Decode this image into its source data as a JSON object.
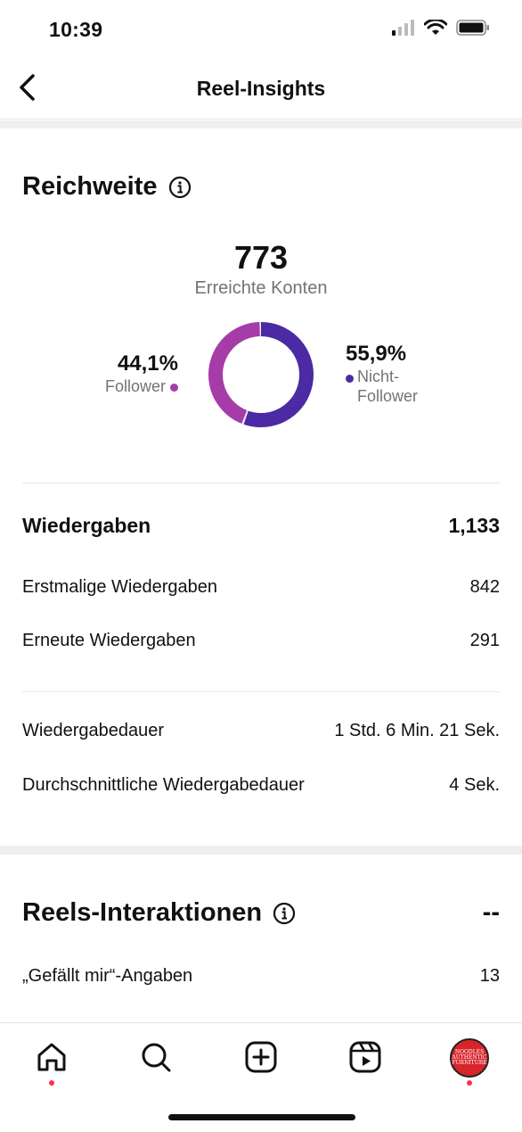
{
  "status_bar": {
    "time": "10:39"
  },
  "header": {
    "title": "Reel-Insights"
  },
  "reach": {
    "title": "Reichweite",
    "accounts_reached": "773",
    "accounts_reached_label": "Erreichte Konten",
    "followers": {
      "percent": "44,1%",
      "label": "Follower",
      "color": "#a63ca8",
      "fraction": 0.441
    },
    "non_followers": {
      "percent": "55,9%",
      "label_line1": "Nicht-",
      "label_line2": "Follower",
      "color": "#4b2aa3",
      "fraction": 0.559
    }
  },
  "plays": {
    "label": "Wiedergaben",
    "value": "1,133",
    "rows": [
      {
        "label": "Erstmalige Wiedergaben",
        "value": "842"
      },
      {
        "label": "Erneute Wiedergaben",
        "value": "291"
      }
    ]
  },
  "watch_time": {
    "rows": [
      {
        "label": "Wiedergabedauer",
        "value": "1 Std. 6 Min. 21 Sek."
      },
      {
        "label": "Durchschnittliche Wiedergabedauer",
        "value": "4 Sek."
      }
    ]
  },
  "interactions": {
    "title": "Reels-Interaktionen",
    "value": "--",
    "rows": [
      {
        "label": "„Gefällt mir“-Angaben",
        "value": "13"
      }
    ]
  },
  "tab_bar": {
    "items": [
      "home-icon",
      "search-icon",
      "create-icon",
      "reels-icon",
      "profile-avatar"
    ],
    "avatar_text": [
      "NOODLES",
      "AUTHENTIC",
      "FURNITURE"
    ],
    "notification_color": "#ff3040"
  }
}
